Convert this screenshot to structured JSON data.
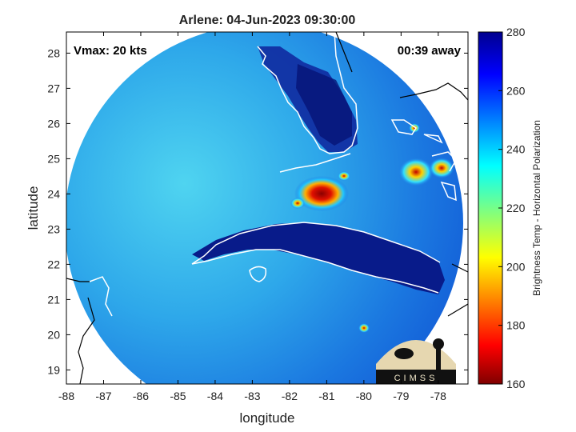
{
  "chart_data": {
    "type": "heatmap",
    "title": "Arlene: 04-Jun-2023 09:30:00",
    "xlabel": "longitude",
    "ylabel": "latitude",
    "xlim": [
      -88,
      -77.2
    ],
    "ylim": [
      18.6,
      28.6
    ],
    "x_ticks": [
      -88,
      -87,
      -86,
      -85,
      -84,
      -83,
      -82,
      -81,
      -80,
      -79,
      -78
    ],
    "y_ticks": [
      19,
      20,
      21,
      22,
      23,
      24,
      25,
      26,
      27,
      28
    ],
    "vmax_label": "Vmax: 20 kts",
    "time_away_label": "00:39 away",
    "colorbar": {
      "label": "Brightness Temp - Horizontal Polarization",
      "range": [
        160,
        280
      ],
      "ticks": [
        160,
        180,
        200,
        220,
        240,
        260,
        280
      ],
      "colormap": "jet"
    },
    "swath": {
      "center": [
        -82.5,
        23.6
      ],
      "radius_deg_lon": 4.95
    },
    "features": [
      {
        "label": "cold cloud core",
        "lon": -81.15,
        "lat": 23.95,
        "min_temp": 168
      },
      {
        "label": "convection",
        "lon": -78.9,
        "lat": 24.7,
        "min_temp": 195
      },
      {
        "label": "convection",
        "lon": -78.0,
        "lat": 24.75,
        "min_temp": 200
      },
      {
        "label": "convection",
        "lon": -79.9,
        "lat": 20.2,
        "min_temp": 215
      }
    ],
    "logo_text": "CIMSS"
  },
  "colors": {
    "axis": "#000000",
    "land_warm": "#0a1e8c",
    "ocean": "#3fb0e8",
    "coast": "#ffffff",
    "coast_outside": "#000000"
  }
}
